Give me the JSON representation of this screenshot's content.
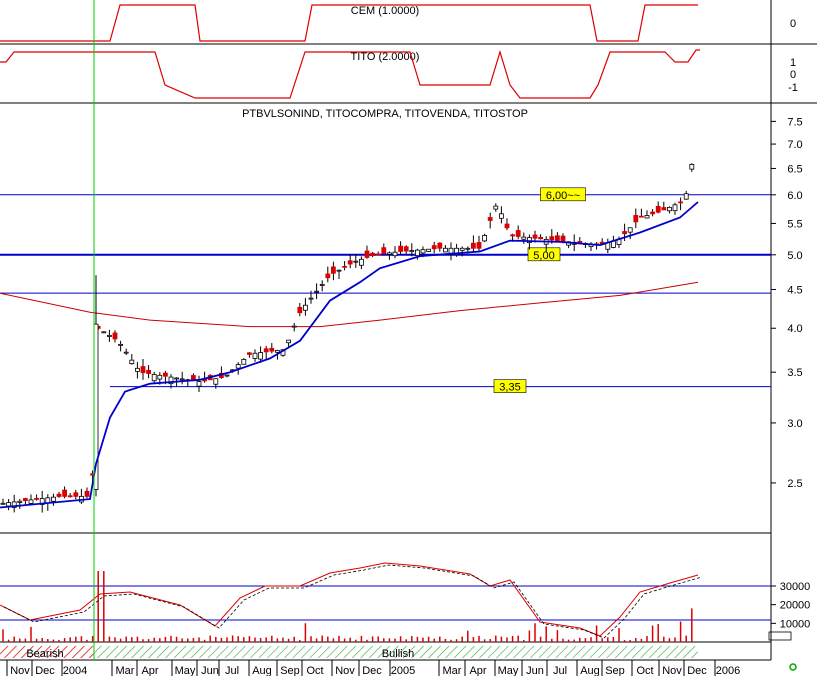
{
  "chart_data": {
    "type": "candlestick",
    "panels": [
      {
        "id": "cem",
        "label": "CEM (1.0000)",
        "y_ticks": [
          "0"
        ],
        "series": [
          {
            "name": "CEM",
            "color": "#dd0000",
            "levels": [
              [
                "Nov 2003",
                0
              ],
              [
                "Mar 2004",
                1
              ],
              [
                "Jun 2004",
                0
              ],
              [
                "Sep 2004",
                1
              ],
              [
                "Aug 2005",
                0
              ],
              [
                "Sep 2005",
                1
              ],
              [
                "Dec 2005",
                1
              ]
            ]
          }
        ]
      },
      {
        "id": "tito",
        "label": "TITO (2.0000)",
        "y_ticks": [
          "1",
          "0",
          "-1"
        ],
        "series": [
          {
            "name": "TITO",
            "color": "#dd0000",
            "levels": [
              [
                "Nov 2003",
                1
              ],
              [
                "Jun 2004",
                -1
              ],
              [
                "Sep 2004",
                1
              ],
              [
                "Feb 2005",
                -1
              ],
              [
                "Apr 2005",
                1
              ],
              [
                "May 2005",
                -1
              ],
              [
                "Sep 2005",
                1
              ],
              [
                "Nov 2005",
                0.5
              ],
              [
                "Dec 2005",
                1
              ]
            ]
          }
        ]
      },
      {
        "id": "price",
        "label": "PTBVLSONIND, TITOCOMPRA, TITOVENDA, TITOSTOP",
        "scale": "log",
        "y_range": [
          2.2,
          7.6
        ],
        "y_ticks": [
          "7.5",
          "7.0",
          "6.5",
          "6.0",
          "5.5",
          "5.0",
          "4.5",
          "4.0",
          "3.5",
          "3.0",
          "2.5"
        ],
        "horizontal_lines": [
          {
            "value": 6.0,
            "label": "6,00~~"
          },
          {
            "value": 5.0,
            "label": "5,00"
          },
          {
            "value": 4.45,
            "label": ""
          },
          {
            "value": 3.35,
            "label": "3,35"
          }
        ],
        "series": [
          {
            "name": "price",
            "type": "candlestick"
          },
          {
            "name": "blue line",
            "color": "#0000cc"
          },
          {
            "name": "red line",
            "color": "#cc0000"
          }
        ]
      },
      {
        "id": "volume",
        "y_ticks": [
          "30000",
          "20000",
          "10000"
        ],
        "series": [
          {
            "name": "volume",
            "type": "bar",
            "color": "#dd0000"
          },
          {
            "name": "oscillator",
            "type": "line",
            "color": "#dd0000"
          }
        ]
      }
    ],
    "x_axis": {
      "labels": [
        "Nov",
        "Dec",
        "2004",
        "Mar",
        "Apr",
        "May",
        "Jun",
        "Jul",
        "Aug",
        "Sep",
        "Oct",
        "Nov",
        "Dec",
        "2005",
        "Mar",
        "Apr",
        "May",
        "Jun",
        "Jul",
        "Aug",
        "Sep",
        "Oct",
        "Nov",
        "Dec",
        "2006"
      ]
    },
    "regime_bar": [
      {
        "label": "Bearish",
        "from": "Nov 2003",
        "to": "Jan 2004"
      },
      {
        "label": "Bullish",
        "from": "Jan 2004",
        "to": "Dec 2005"
      }
    ],
    "vertical_marker": "Jan 2004"
  }
}
